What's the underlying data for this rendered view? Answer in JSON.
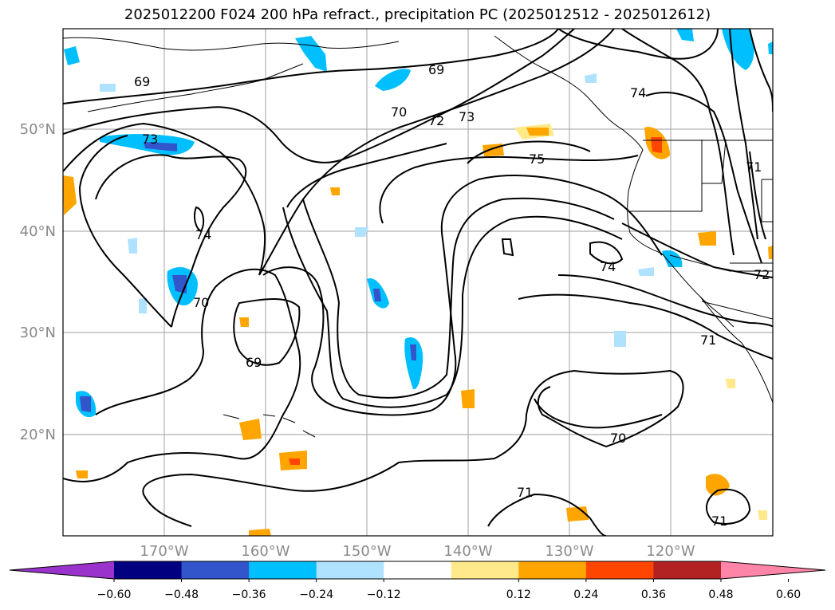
{
  "title": "2025012200 F024 200 hPa refract., precipitation PC (2025012512 - 2025012612)",
  "map": {
    "lon_labels": [
      "170°W",
      "160°W",
      "150°W",
      "140°W",
      "130°W",
      "120°W"
    ],
    "lat_labels": [
      "50°N",
      "40°N",
      "30°N",
      "20°N"
    ],
    "contour_labels": [
      "69",
      "69",
      "70",
      "72",
      "73",
      "73",
      "74",
      "74",
      "74",
      "75",
      "70",
      "69",
      "70",
      "71",
      "71",
      "71",
      "72",
      "71"
    ]
  },
  "colorbar": {
    "ticks": [
      "−0.60",
      "−0.48",
      "−0.36",
      "−0.24",
      "−0.12",
      "0.12",
      "0.24",
      "0.36",
      "0.48",
      "0.60"
    ],
    "colors": [
      "#9933cc",
      "#000080",
      "#3355cc",
      "#00bfff",
      "#aee2ff",
      "#ffffff",
      "#ffe98a",
      "#ffa500",
      "#ff4500",
      "#b22222",
      "#ff85a8"
    ]
  }
}
